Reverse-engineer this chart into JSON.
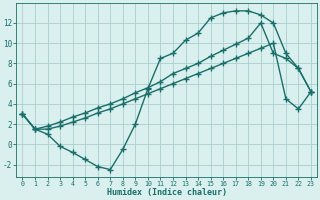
{
  "bg_color": "#daf0ef",
  "grid_color": "#aacece",
  "line_color": "#1a6e6a",
  "line_width": 1.0,
  "marker": "+",
  "marker_size": 4,
  "marker_mew": 1.0,
  "xlabel": "Humidex (Indice chaleur)",
  "xlim": [
    -0.5,
    23.5
  ],
  "ylim": [
    -3.2,
    14.0
  ],
  "xticks": [
    0,
    1,
    2,
    3,
    4,
    5,
    6,
    7,
    8,
    9,
    10,
    11,
    12,
    13,
    14,
    15,
    16,
    17,
    18,
    19,
    20,
    21,
    22,
    23
  ],
  "yticks": [
    -2,
    0,
    2,
    4,
    6,
    8,
    10,
    12
  ],
  "line1_x": [
    0,
    1,
    2,
    3,
    4,
    5,
    6,
    7,
    8,
    9,
    10,
    11,
    12,
    13,
    14,
    15,
    16,
    17,
    18,
    19,
    20,
    21,
    22,
    23
  ],
  "line1_y": [
    3,
    1.5,
    1,
    -0.2,
    -0.8,
    -1.5,
    -2.2,
    -2.5,
    -0.5,
    2.0,
    5.5,
    8.5,
    9.0,
    10.3,
    11.0,
    12.5,
    13.0,
    13.2,
    13.2,
    12.8,
    12.0,
    9.0,
    7.5,
    5.2
  ],
  "line2_x": [
    0,
    1,
    2,
    3,
    4,
    5,
    6,
    7,
    8,
    9,
    10,
    11,
    12,
    13,
    14,
    15,
    16,
    17,
    18,
    19,
    20,
    21,
    22,
    23
  ],
  "line2_y": [
    3,
    1.5,
    1.5,
    1.8,
    2.2,
    2.6,
    3.1,
    3.5,
    4.0,
    4.5,
    5.0,
    5.5,
    6.0,
    6.5,
    7.0,
    7.5,
    8.0,
    8.5,
    9.0,
    9.5,
    10.0,
    4.5,
    3.5,
    5.2
  ],
  "line3_x": [
    0,
    1,
    2,
    3,
    4,
    5,
    6,
    7,
    8,
    9,
    10,
    11,
    12,
    13,
    14,
    15,
    16,
    17,
    18,
    19,
    20,
    21,
    22,
    23
  ],
  "line3_y": [
    3,
    1.5,
    1.8,
    2.2,
    2.7,
    3.1,
    3.6,
    4.0,
    4.5,
    5.1,
    5.6,
    6.2,
    7.0,
    7.5,
    8.0,
    8.7,
    9.3,
    9.9,
    10.5,
    12.0,
    9.0,
    8.5,
    7.5,
    5.2
  ],
  "xlabel_fontsize": 6.0,
  "xtick_fontsize": 4.8,
  "ytick_fontsize": 5.5
}
